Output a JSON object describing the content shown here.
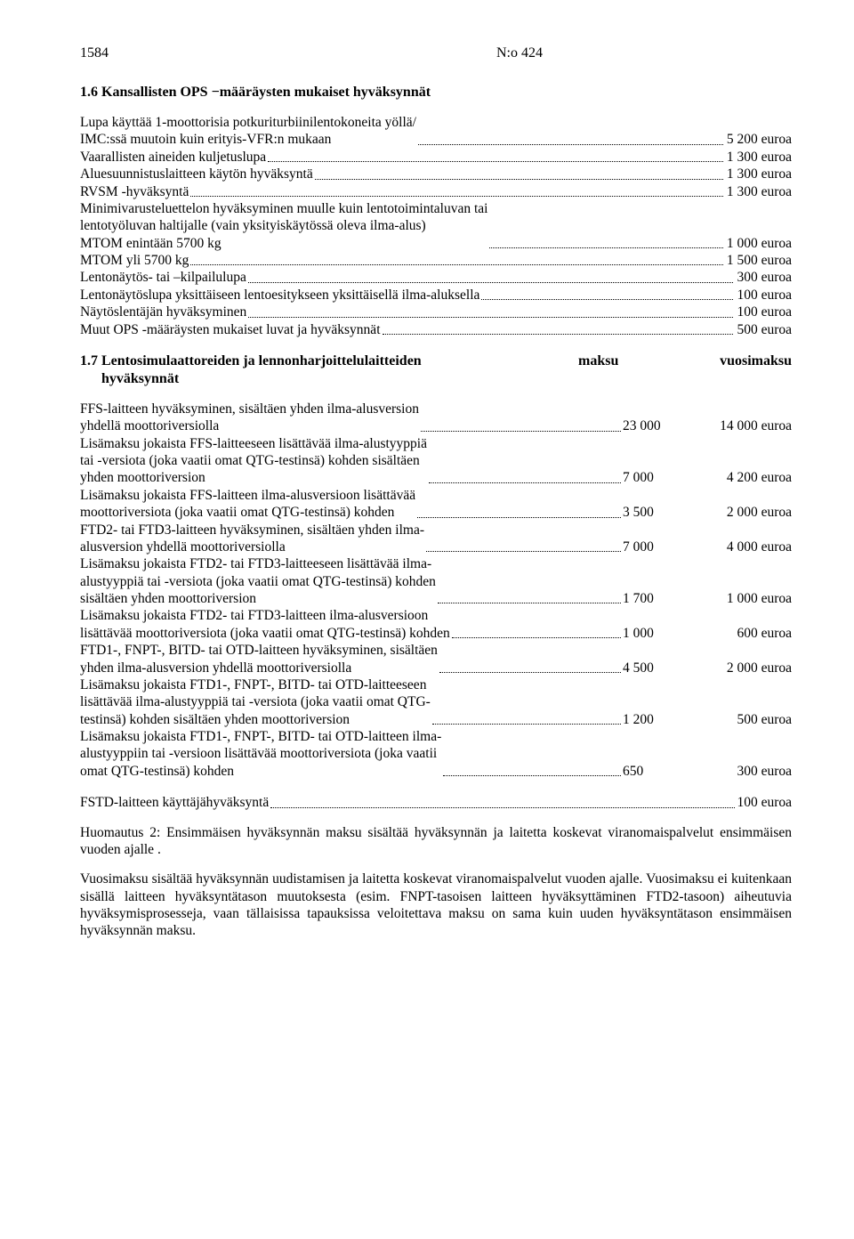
{
  "header": {
    "page": "1584",
    "docnum": "N:o 424"
  },
  "section16": {
    "title": "1.6 Kansallisten OPS −määräysten mukaiset hyväksynnät",
    "items": [
      {
        "label": "Lupa käyttää 1-moottorisia potkuriturbiinilentokoneita yöllä/\nIMC:ssä muutoin kuin erityis-VFR:n mukaan",
        "value": "5 200 euroa"
      },
      {
        "label": "Vaarallisten aineiden kuljetuslupa",
        "value": "1 300 euroa"
      },
      {
        "label": "Aluesuunnistuslaitteen käytön hyväksyntä",
        "value": "1 300 euroa"
      },
      {
        "label": "RVSM -hyväksyntä",
        "value": "1 300 euroa"
      },
      {
        "label": "Minimivarusteluettelon hyväksyminen muulle kuin lentotoimintaluvan tai\nlentotyöluvan haltijalle (vain yksityiskäytössä oleva ilma-alus)\nMTOM enintään 5700 kg",
        "value": "1 000 euroa"
      },
      {
        "label": "MTOM yli 5700 kg",
        "value": "1 500 euroa"
      },
      {
        "label": "Lentonäytös- tai –kilpailulupa",
        "value": "300 euroa"
      },
      {
        "label": "Lentonäytöslupa yksittäiseen lentoesitykseen yksittäisellä ilma-aluksella",
        "value": "100 euroa"
      },
      {
        "label": "Näytöslentäjän hyväksyminen",
        "value": "100 euroa"
      },
      {
        "label": "Muut OPS -määräysten mukaiset luvat ja hyväksynnät",
        "value": "500 euroa"
      }
    ]
  },
  "section17": {
    "title": "1.7 Lentosimulaattoreiden ja lennonharjoittelulaitteiden\n      hyväksynnät",
    "col1": "maksu",
    "col2": "vuosimaksu",
    "items": [
      {
        "label": "FFS-laitteen hyväksyminen, sisältäen yhden ilma-alusversion\nyhdellä moottoriversiolla",
        "c1": "23 000",
        "c2": "14 000 euroa"
      },
      {
        "label": "Lisämaksu jokaista FFS-laitteeseen lisättävää ilma-alustyyppiä\ntai -versiota (joka vaatii omat QTG-testinsä) kohden sisältäen\nyhden moottoriversion",
        "c1": "7 000",
        "c2": "4 200 euroa"
      },
      {
        "label": "Lisämaksu jokaista FFS-laitteen ilma-alusversioon lisättävää\nmoottoriversiota (joka vaatii omat QTG-testinsä) kohden",
        "c1": "3 500",
        "c2": "2 000 euroa"
      },
      {
        "label": "FTD2- tai FTD3-laitteen hyväksyminen, sisältäen yhden ilma-\nalusversion yhdellä moottoriversiolla",
        "c1": "7 000",
        "c2": "4 000 euroa"
      },
      {
        "label": "Lisämaksu jokaista FTD2- tai FTD3-laitteeseen lisättävää ilma-\nalustyyppiä tai -versiota (joka vaatii omat QTG-testinsä) kohden\nsisältäen yhden moottoriversion",
        "c1": "1 700",
        "c2": "1 000 euroa"
      },
      {
        "label": "Lisämaksu jokaista FTD2- tai FTD3-laitteen ilma-alusversioon\nlisättävää moottoriversiota (joka vaatii omat QTG-testinsä) kohden",
        "c1": "1 000",
        "c2": "600 euroa"
      },
      {
        "label": "FTD1-, FNPT-, BITD- tai OTD-laitteen hyväksyminen, sisältäen\nyhden ilma-alusversion yhdellä moottoriversiolla",
        "c1": "4 500",
        "c2": "2 000 euroa"
      },
      {
        "label": "Lisämaksu jokaista FTD1-, FNPT-, BITD- tai OTD-laitteeseen\nlisättävää ilma-alustyyppiä tai -versiota (joka vaatii omat QTG-\ntestinsä) kohden sisältäen yhden moottoriversion",
        "c1": "1 200",
        "c2": "500 euroa"
      },
      {
        "label": "Lisämaksu jokaista FTD1-, FNPT-, BITD- tai OTD-laitteen ilma-\nalustyyppiin tai -versioon lisättävää moottoriversiota (joka vaatii\nomat QTG-testinsä) kohden",
        "c1": "650",
        "c2": "300 euroa"
      }
    ],
    "fstd": {
      "label": "FSTD-laitteen käyttäjähyväksyntä",
      "value": "100 euroa"
    }
  },
  "notes": {
    "n2": "Huomautus 2: Ensimmäisen hyväksynnän maksu sisältää hyväksynnän ja laitetta koskevat viranomaispalvelut ensimmäisen vuoden ajalle .",
    "n3": "Vuosimaksu sisältää hyväksynnän uudistamisen ja laitetta koskevat viranomaispalvelut vuoden ajalle. Vuosimaksu ei kuitenkaan sisällä laitteen hyväksyntätason muutoksesta (esim. FNPT-tasoisen laitteen hyväksyttäminen FTD2-tasoon) aiheutuvia hyväksymisprosesseja, vaan tällaisissa tapauksissa veloitettava maksu on sama kuin uuden hyväksyntätason ensimmäisen hyväksynnän maksu."
  }
}
